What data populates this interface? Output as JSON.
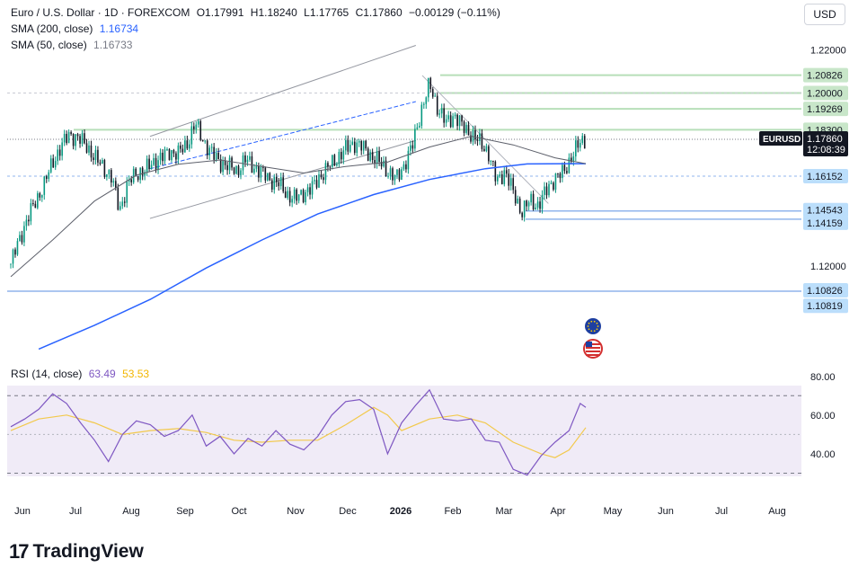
{
  "header": {
    "symbol_title": "Euro / U.S. Dollar · 1D · FOREXCOM",
    "open": "O1.17991",
    "high": "H1.18240",
    "low": "L1.17765",
    "close": "C1.17860",
    "change": "−0.00129 (−0.11%)",
    "sma200_label": "SMA (200, close)",
    "sma200_value": "1.16734",
    "sma50_label": "SMA (50, close)",
    "sma50_value": "1.16733",
    "rsi_label": "RSI (14, close)",
    "rsi_value": "63.49",
    "rsi_ma_value": "53.53"
  },
  "currency_button": "USD",
  "brand": "TradingView",
  "colors": {
    "up": "#089981",
    "down": "#131722",
    "sma200": "#2962ff",
    "sma50": "#5d606b",
    "rsi": "#7e57c2",
    "rsi_ma": "#f2c94c",
    "resistance": "#c8e6c9",
    "support": "#bbdefb"
  },
  "chart_data": {
    "type": "candlestick",
    "symbol": "EURUSD",
    "last_price": "1.17860",
    "countdown": "12:08:39",
    "price_axis": {
      "ylim": [
        1.0775,
        1.2285
      ],
      "ticks": [
        "1.22000",
        "1.12000"
      ]
    },
    "x_axis": {
      "labels": [
        "Jun",
        "Jul",
        "Aug",
        "Sep",
        "Oct",
        "Nov",
        "Dec",
        "2026",
        "Feb",
        "Mar",
        "Apr",
        "May",
        "Jun",
        "Jul",
        "Aug"
      ],
      "bold_labels": [
        "2026"
      ]
    },
    "resistance_levels": [
      "1.20826",
      "1.20000",
      "1.19269",
      "1.18300"
    ],
    "support_levels": [
      "1.16152",
      "1.14543",
      "1.14159",
      "1.10826",
      "1.10819"
    ],
    "close_series": [
      [
        0,
        1.121
      ],
      [
        6,
        1.132
      ],
      [
        12,
        1.142
      ],
      [
        18,
        1.15
      ],
      [
        24,
        1.158
      ],
      [
        30,
        1.168
      ],
      [
        36,
        1.175
      ],
      [
        42,
        1.181
      ],
      [
        48,
        1.179
      ],
      [
        54,
        1.176
      ],
      [
        60,
        1.17
      ],
      [
        66,
        1.166
      ],
      [
        72,
        1.161
      ],
      [
        78,
        1.146
      ],
      [
        84,
        1.158
      ],
      [
        90,
        1.163
      ],
      [
        96,
        1.164
      ],
      [
        102,
        1.168
      ],
      [
        108,
        1.17
      ],
      [
        114,
        1.173
      ],
      [
        120,
        1.172
      ],
      [
        126,
        1.176
      ],
      [
        132,
        1.186
      ],
      [
        138,
        1.178
      ],
      [
        144,
        1.172
      ],
      [
        150,
        1.168
      ],
      [
        156,
        1.166
      ],
      [
        162,
        1.164
      ],
      [
        168,
        1.169
      ],
      [
        174,
        1.166
      ],
      [
        180,
        1.163
      ],
      [
        186,
        1.16
      ],
      [
        192,
        1.158
      ],
      [
        198,
        1.153
      ],
      [
        204,
        1.151
      ],
      [
        210,
        1.154
      ],
      [
        216,
        1.156
      ],
      [
        222,
        1.162
      ],
      [
        228,
        1.166
      ],
      [
        234,
        1.17
      ],
      [
        240,
        1.174
      ],
      [
        246,
        1.177
      ],
      [
        252,
        1.175
      ],
      [
        258,
        1.171
      ],
      [
        264,
        1.168
      ],
      [
        270,
        1.164
      ],
      [
        276,
        1.16
      ],
      [
        282,
        1.167
      ],
      [
        288,
        1.176
      ],
      [
        294,
        1.192
      ],
      [
        300,
        1.204
      ],
      [
        306,
        1.193
      ],
      [
        312,
        1.186
      ],
      [
        318,
        1.19
      ],
      [
        324,
        1.184
      ],
      [
        330,
        1.181
      ],
      [
        336,
        1.177
      ],
      [
        342,
        1.173
      ],
      [
        348,
        1.159
      ],
      [
        354,
        1.164
      ],
      [
        360,
        1.154
      ],
      [
        366,
        1.145
      ],
      [
        372,
        1.15
      ],
      [
        378,
        1.148
      ],
      [
        384,
        1.155
      ],
      [
        390,
        1.161
      ],
      [
        396,
        1.163
      ],
      [
        402,
        1.171
      ],
      [
        408,
        1.177
      ],
      [
        412,
        1.1786
      ]
    ],
    "sma200": [
      [
        20,
        1.0815
      ],
      [
        60,
        1.0925
      ],
      [
        100,
        1.1045
      ],
      [
        140,
        1.119
      ],
      [
        180,
        1.132
      ],
      [
        220,
        1.144
      ],
      [
        260,
        1.153
      ],
      [
        300,
        1.16
      ],
      [
        340,
        1.165
      ],
      [
        370,
        1.1672
      ],
      [
        412,
        1.1673
      ]
    ],
    "sma50": [
      [
        0,
        1.115
      ],
      [
        30,
        1.132
      ],
      [
        60,
        1.15
      ],
      [
        90,
        1.162
      ],
      [
        120,
        1.167
      ],
      [
        150,
        1.169
      ],
      [
        180,
        1.166
      ],
      [
        210,
        1.163
      ],
      [
        240,
        1.166
      ],
      [
        270,
        1.168
      ],
      [
        300,
        1.175
      ],
      [
        330,
        1.18
      ],
      [
        360,
        1.176
      ],
      [
        390,
        1.17
      ],
      [
        412,
        1.1673
      ]
    ],
    "rsi": {
      "ylim": [
        20,
        85
      ],
      "ticks": [
        "80.00",
        "60.00",
        "40.00"
      ],
      "band": [
        30,
        70
      ],
      "rsi_series": [
        [
          0,
          54
        ],
        [
          10,
          58
        ],
        [
          20,
          63
        ],
        [
          30,
          71
        ],
        [
          40,
          66
        ],
        [
          50,
          56
        ],
        [
          60,
          47
        ],
        [
          70,
          36
        ],
        [
          80,
          50
        ],
        [
          90,
          57
        ],
        [
          100,
          55
        ],
        [
          110,
          49
        ],
        [
          120,
          52
        ],
        [
          130,
          60
        ],
        [
          140,
          44
        ],
        [
          150,
          49
        ],
        [
          160,
          40
        ],
        [
          170,
          48
        ],
        [
          180,
          44
        ],
        [
          190,
          52
        ],
        [
          200,
          45
        ],
        [
          210,
          42
        ],
        [
          220,
          49
        ],
        [
          230,
          60
        ],
        [
          240,
          67
        ],
        [
          250,
          68
        ],
        [
          260,
          63
        ],
        [
          270,
          40
        ],
        [
          280,
          56
        ],
        [
          290,
          65
        ],
        [
          300,
          73
        ],
        [
          310,
          58
        ],
        [
          320,
          57
        ],
        [
          330,
          58
        ],
        [
          340,
          47
        ],
        [
          350,
          46
        ],
        [
          360,
          32
        ],
        [
          370,
          29
        ],
        [
          380,
          39
        ],
        [
          390,
          46
        ],
        [
          400,
          52
        ],
        [
          408,
          66
        ],
        [
          412,
          64
        ]
      ],
      "rsi_ma_series": [
        [
          0,
          52
        ],
        [
          20,
          58
        ],
        [
          40,
          60
        ],
        [
          60,
          56
        ],
        [
          80,
          50
        ],
        [
          100,
          52
        ],
        [
          120,
          53
        ],
        [
          140,
          51
        ],
        [
          160,
          47
        ],
        [
          180,
          46
        ],
        [
          200,
          47
        ],
        [
          220,
          47
        ],
        [
          240,
          55
        ],
        [
          260,
          64
        ],
        [
          270,
          60
        ],
        [
          280,
          52
        ],
        [
          300,
          58
        ],
        [
          320,
          60
        ],
        [
          340,
          56
        ],
        [
          360,
          46
        ],
        [
          380,
          40
        ],
        [
          390,
          38
        ],
        [
          400,
          42
        ],
        [
          412,
          53.5
        ]
      ]
    }
  }
}
